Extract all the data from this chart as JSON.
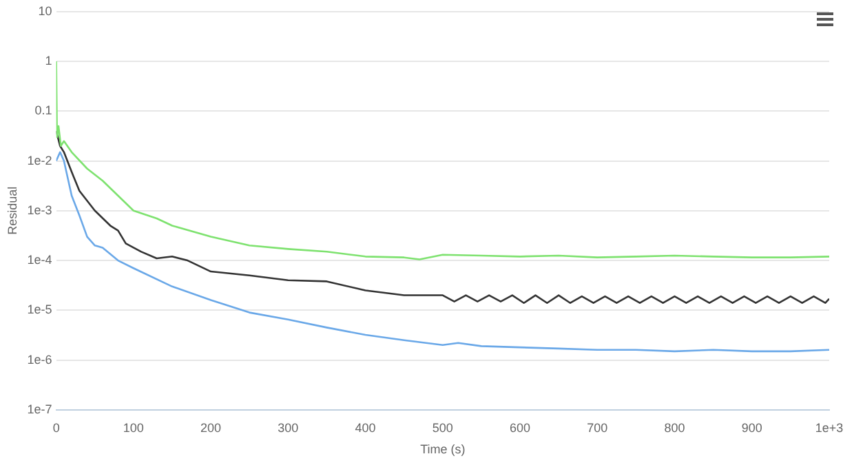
{
  "chart_data": {
    "type": "line",
    "xlabel": "Time (s)",
    "ylabel": "Residual",
    "log": "y",
    "grid": "y",
    "marker": "none",
    "line_style": "solid",
    "xlim": [
      0,
      1000
    ],
    "ylim": [
      1e-07,
      10
    ],
    "xticks": [
      0,
      100,
      200,
      300,
      400,
      500,
      600,
      700,
      800,
      900,
      {
        "value": 1000,
        "label": "1e+3"
      }
    ],
    "yticks": [
      {
        "value": 1e-07,
        "label": "1e-7"
      },
      {
        "value": 1e-06,
        "label": "1e-6"
      },
      {
        "value": 1e-05,
        "label": "1e-5"
      },
      {
        "value": 0.0001,
        "label": "1e-4"
      },
      {
        "value": 0.001,
        "label": "1e-3"
      },
      {
        "value": 0.01,
        "label": "1e-2"
      },
      0.1,
      1,
      10
    ],
    "series": [
      {
        "color": "#7ee26f",
        "x": [
          0,
          1,
          3,
          6,
          10,
          20,
          40,
          60,
          80,
          100,
          130,
          150,
          200,
          250,
          300,
          350,
          400,
          450,
          470,
          500,
          550,
          600,
          650,
          700,
          750,
          800,
          850,
          900,
          950,
          1000
        ],
        "values": [
          1,
          0.03,
          0.05,
          0.02,
          0.025,
          0.015,
          0.007,
          0.004,
          0.002,
          0.001,
          0.0007,
          0.0005,
          0.0003,
          0.0002,
          0.00017,
          0.00015,
          0.00012,
          0.000115,
          0.000105,
          0.00013,
          0.000125,
          0.00012,
          0.000125,
          0.000115,
          0.00012,
          0.000125,
          0.00012,
          0.000115,
          0.000115,
          0.00012
        ]
      },
      {
        "color": "#333333",
        "x": [
          0,
          5,
          10,
          20,
          30,
          50,
          70,
          80,
          90,
          110,
          130,
          150,
          170,
          200,
          250,
          300,
          350,
          400,
          450,
          500,
          515,
          530,
          545,
          560,
          575,
          590,
          605,
          620,
          635,
          650,
          665,
          680,
          695,
          710,
          725,
          740,
          755,
          770,
          785,
          800,
          815,
          830,
          845,
          860,
          875,
          890,
          905,
          920,
          935,
          950,
          965,
          980,
          995,
          1000
        ],
        "values": [
          0.04,
          0.02,
          0.015,
          0.006,
          0.0025,
          0.001,
          0.0005,
          0.0004,
          0.00022,
          0.00015,
          0.00011,
          0.00012,
          0.0001,
          6e-05,
          5e-05,
          4e-05,
          3.8e-05,
          2.5e-05,
          2e-05,
          2e-05,
          1.5e-05,
          2e-05,
          1.5e-05,
          2e-05,
          1.5e-05,
          2e-05,
          1.4e-05,
          2e-05,
          1.4e-05,
          2e-05,
          1.4e-05,
          1.9e-05,
          1.4e-05,
          1.9e-05,
          1.4e-05,
          1.9e-05,
          1.4e-05,
          1.9e-05,
          1.4e-05,
          1.9e-05,
          1.4e-05,
          1.9e-05,
          1.4e-05,
          1.9e-05,
          1.4e-05,
          1.9e-05,
          1.4e-05,
          1.9e-05,
          1.4e-05,
          1.9e-05,
          1.4e-05,
          1.9e-05,
          1.4e-05,
          1.7e-05
        ]
      },
      {
        "color": "#6aa8e8",
        "x": [
          0,
          5,
          10,
          20,
          30,
          40,
          50,
          60,
          80,
          100,
          150,
          200,
          250,
          300,
          350,
          400,
          450,
          500,
          520,
          550,
          600,
          650,
          700,
          750,
          800,
          850,
          900,
          950,
          1000
        ],
        "values": [
          0.01,
          0.015,
          0.01,
          0.002,
          0.0008,
          0.0003,
          0.0002,
          0.00018,
          0.0001,
          7e-05,
          3e-05,
          1.6e-05,
          9e-06,
          6.5e-06,
          4.5e-06,
          3.2e-06,
          2.5e-06,
          2e-06,
          2.2e-06,
          1.9e-06,
          1.8e-06,
          1.7e-06,
          1.6e-06,
          1.6e-06,
          1.5e-06,
          1.6e-06,
          1.5e-06,
          1.5e-06,
          1.6e-06
        ]
      }
    ]
  }
}
